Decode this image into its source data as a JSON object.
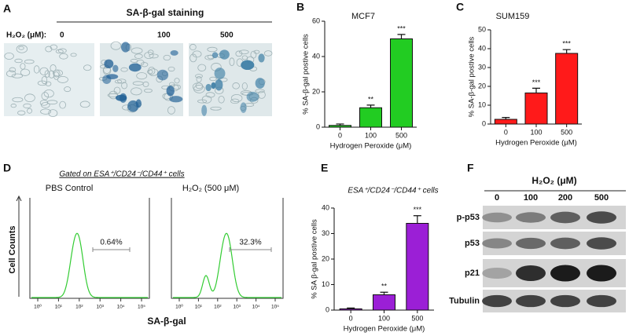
{
  "panel_letters": [
    "A",
    "B",
    "C",
    "D",
    "E",
    "F"
  ],
  "staining": {
    "title": "SA-β-gal staining",
    "dose_label": "H₂O₂ (μM):",
    "doses": [
      "0",
      "100",
      "500"
    ]
  },
  "chart_data": [
    {
      "type": "bar",
      "title": "MCF7",
      "x_label": "Hydrogen Peroxide (μM)",
      "y_label": "% SA-β-gal postive cells",
      "categories": [
        "0",
        "100",
        "500"
      ],
      "values": [
        1,
        11,
        50
      ],
      "errors": [
        0.8,
        1.5,
        2.5
      ],
      "significance": [
        null,
        "**",
        "***"
      ],
      "color": "#22cc22",
      "ylim": [
        0,
        60
      ],
      "yticks": [
        0,
        20,
        40,
        60
      ]
    },
    {
      "type": "bar",
      "title": "SUM159",
      "x_label": "Hydrogen Peroxide (μM)",
      "y_label": "% SA-β-gal postive cells",
      "categories": [
        "0",
        "100",
        "500"
      ],
      "values": [
        2.5,
        16.5,
        37.5
      ],
      "errors": [
        1,
        2.5,
        2
      ],
      "significance": [
        null,
        "***",
        "***"
      ],
      "color": "#ff1a1a",
      "ylim": [
        0,
        50
      ],
      "yticks": [
        0,
        10,
        20,
        30,
        40,
        50
      ]
    },
    {
      "type": "bar",
      "title": "ESA⁺/CD24⁻/CD44⁺ cells",
      "x_label": "Hydrogen Peroxide (μM)",
      "y_label": "% SA β-gal postive cells",
      "categories": [
        "0",
        "100",
        "500"
      ],
      "values": [
        0.5,
        6,
        34
      ],
      "errors": [
        0.3,
        1,
        3
      ],
      "significance": [
        null,
        "**",
        "***"
      ],
      "color": "#9b1fd6",
      "ylim": [
        0,
        40
      ],
      "yticks": [
        0,
        10,
        20,
        30,
        40
      ]
    }
  ],
  "flow": {
    "title": "Gated on ESA⁺/CD24⁻/CD44⁺ cells",
    "y_label": "Cell Counts",
    "x_label": "SA-β-gal",
    "x_tick_labels": [
      "10⁰",
      "10¹",
      "10²",
      "10³",
      "10⁴",
      "10⁵"
    ],
    "plots": [
      {
        "name": "PBS Control",
        "gate": "0.64%"
      },
      {
        "name": "H₂O₂ (500 μM)",
        "gate": "32.3%"
      }
    ]
  },
  "blot": {
    "title": "H₂O₂ (μM)",
    "lanes": [
      "0",
      "100",
      "200",
      "500"
    ],
    "rows": [
      "p-p53",
      "p53",
      "p21",
      "Tubulin"
    ]
  }
}
